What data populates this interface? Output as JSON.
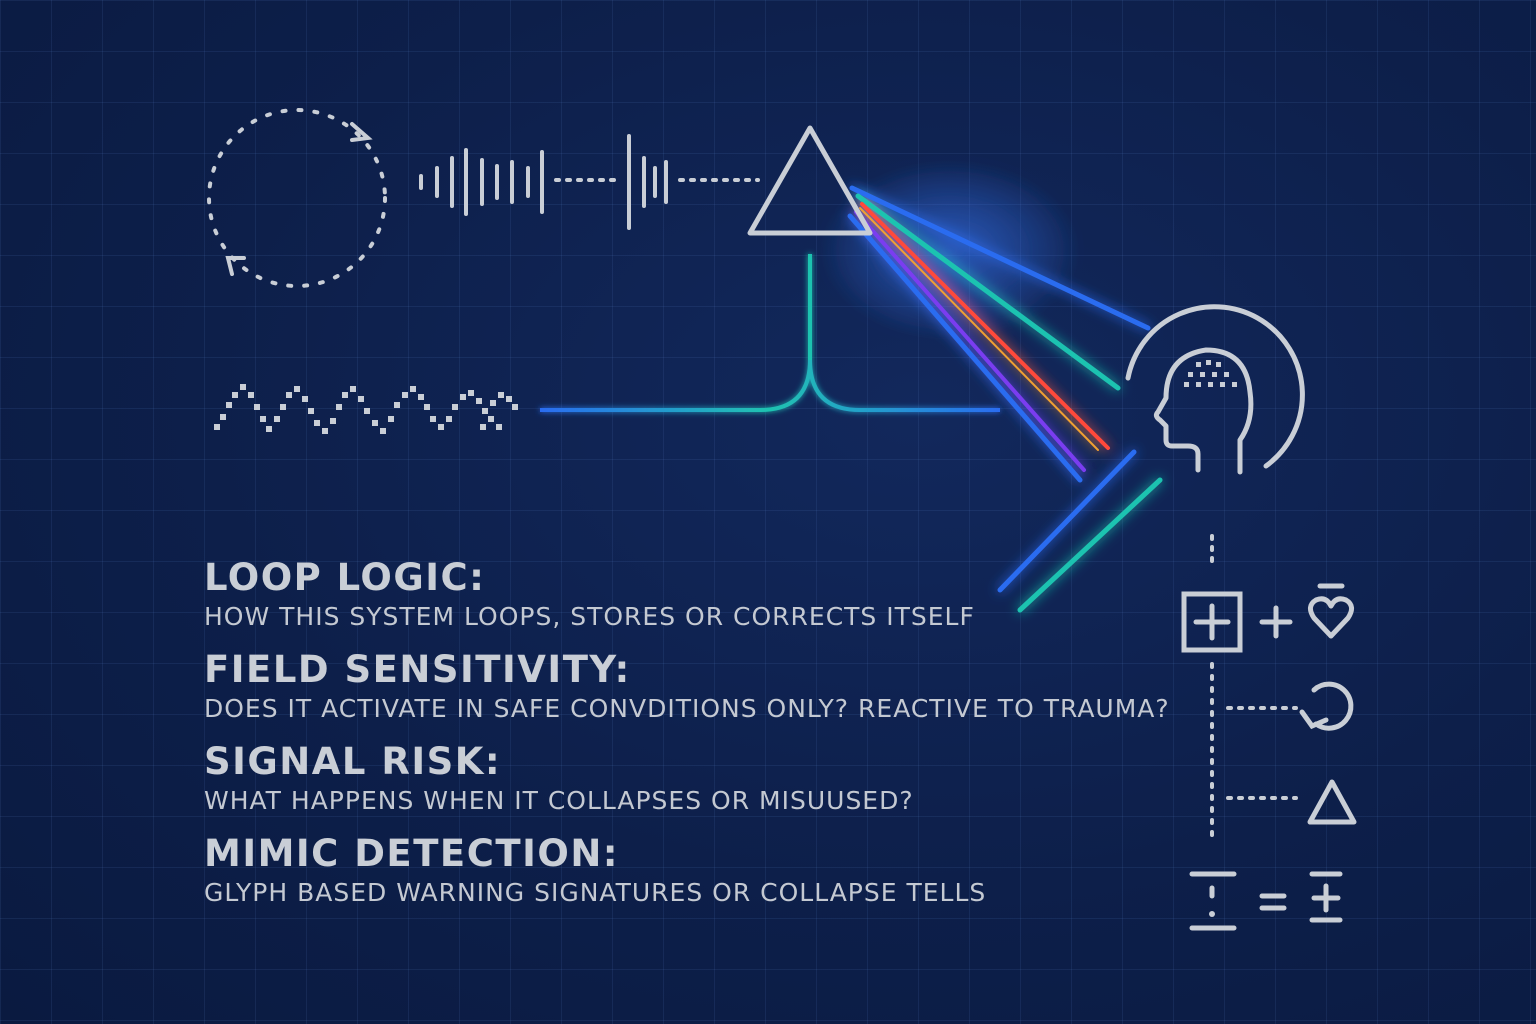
{
  "sections": [
    {
      "heading": "LOOP LOGIC:",
      "description": "HOW THIS SYSTEM LOOPS, STORES OR CORRECTS ITSELF"
    },
    {
      "heading": "FIELD SENSITIVITY:",
      "description": "DOES IT ACTIVATE IN SAFE CONVDITIONS ONLY? REACTIVE TO TRAUMA?"
    },
    {
      "heading": "SIGNAL RISK:",
      "description": "WHAT HAPPENS WHEN IT COLLAPSES OR MISUUSED?"
    },
    {
      "heading": "MIMIC DETECTION:",
      "description": "GLYPH BASED WARNING SIGNATURES OR COLLAPSE TELLS"
    }
  ],
  "icons": [
    "loop-cycle-icon",
    "waveform-icon",
    "prism-icon",
    "pixel-wave-icon",
    "head-profile-icon",
    "plus-box-icon",
    "plus-icon",
    "heart-icon",
    "refresh-loop-icon",
    "triangle-icon",
    "divide-icon",
    "equals-icon",
    "plus-minus-icon"
  ],
  "colors": {
    "background": "#0d1f4a",
    "line": "#c9ced6",
    "beam_blue": "#2a6cf0",
    "beam_teal": "#1fc3b0",
    "beam_violet": "#7a3cf0",
    "beam_red": "#ff4a3a"
  }
}
